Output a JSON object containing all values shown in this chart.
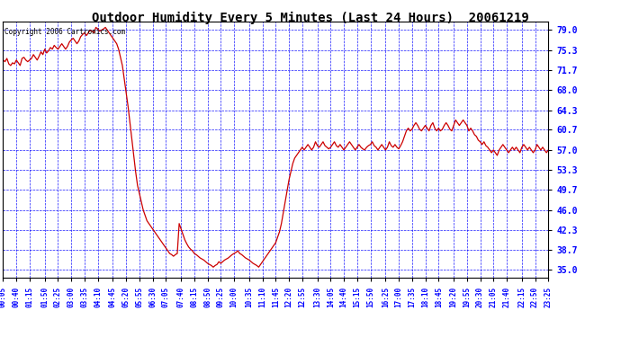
{
  "title": "Outdoor Humidity Every 5 Minutes (Last 24 Hours)  20061219",
  "copyright_text": "Copyright 2006 Cartronics.com",
  "background_color": "#ffffff",
  "plot_bg_color": "#ffffff",
  "grid_color": "#0000ff",
  "line_color": "#cc0000",
  "yticks": [
    35.0,
    38.7,
    42.3,
    46.0,
    49.7,
    53.3,
    57.0,
    60.7,
    64.3,
    68.0,
    71.7,
    75.3,
    79.0
  ],
  "ymin": 33.5,
  "ymax": 80.5,
  "xtick_labels": [
    "00:05",
    "00:40",
    "01:15",
    "01:50",
    "02:25",
    "03:00",
    "03:35",
    "04:10",
    "04:45",
    "05:20",
    "05:55",
    "06:30",
    "07:05",
    "07:40",
    "08:15",
    "08:50",
    "09:25",
    "10:00",
    "10:35",
    "11:10",
    "11:45",
    "12:20",
    "12:55",
    "13:30",
    "14:05",
    "14:40",
    "15:15",
    "15:50",
    "16:25",
    "17:00",
    "17:35",
    "18:10",
    "18:45",
    "19:20",
    "19:55",
    "20:30",
    "21:05",
    "21:40",
    "22:15",
    "22:50",
    "23:25"
  ],
  "humidity_data": [
    73.5,
    73.2,
    73.8,
    72.8,
    72.5,
    73.0,
    72.8,
    73.5,
    73.0,
    72.5,
    73.8,
    74.0,
    73.5,
    73.2,
    73.5,
    73.8,
    74.5,
    74.0,
    73.5,
    74.2,
    75.0,
    74.5,
    75.5,
    74.8,
    75.2,
    75.8,
    75.5,
    76.2,
    75.8,
    75.5,
    76.0,
    76.5,
    76.0,
    75.5,
    76.0,
    76.8,
    77.2,
    77.5,
    77.0,
    76.5,
    77.0,
    77.8,
    78.2,
    78.5,
    78.0,
    78.5,
    79.0,
    78.8,
    78.5,
    79.5,
    79.2,
    78.8,
    79.0,
    79.2,
    79.5,
    79.0,
    78.5,
    78.0,
    77.5,
    77.0,
    76.5,
    75.5,
    74.0,
    72.5,
    70.0,
    67.5,
    65.0,
    62.0,
    59.0,
    56.0,
    53.0,
    50.5,
    49.0,
    47.5,
    46.0,
    45.0,
    44.0,
    43.5,
    43.0,
    42.5,
    42.0,
    41.5,
    41.0,
    40.5,
    40.0,
    39.5,
    39.0,
    38.5,
    38.0,
    37.8,
    37.5,
    37.8,
    38.0,
    43.5,
    42.5,
    41.5,
    40.5,
    39.8,
    39.2,
    38.8,
    38.5,
    38.0,
    37.8,
    37.5,
    37.2,
    37.0,
    36.8,
    36.5,
    36.2,
    36.0,
    35.8,
    35.5,
    35.8,
    36.0,
    36.5,
    36.2,
    36.5,
    36.8,
    37.0,
    37.2,
    37.5,
    37.8,
    38.0,
    38.2,
    38.5,
    38.0,
    37.8,
    37.5,
    37.2,
    37.0,
    36.8,
    36.5,
    36.2,
    36.0,
    35.8,
    35.5,
    36.0,
    36.5,
    37.0,
    37.5,
    38.0,
    38.5,
    39.0,
    39.5,
    40.0,
    41.0,
    42.0,
    43.5,
    45.5,
    47.5,
    49.5,
    51.5,
    53.0,
    54.5,
    55.5,
    56.0,
    56.5,
    57.0,
    57.5,
    57.0,
    57.5,
    58.0,
    57.5,
    57.0,
    57.5,
    58.5,
    57.8,
    57.5,
    58.0,
    58.5,
    57.8,
    57.5,
    57.2,
    57.5,
    58.0,
    58.5,
    57.8,
    57.5,
    58.0,
    57.5,
    57.0,
    57.5,
    58.0,
    58.5,
    58.0,
    57.5,
    57.0,
    57.5,
    58.0,
    57.5,
    57.2,
    57.0,
    57.5,
    57.8,
    58.0,
    58.5,
    57.8,
    57.5,
    57.0,
    57.5,
    58.0,
    57.5,
    57.0,
    57.5,
    58.5,
    57.8,
    57.5,
    58.0,
    57.5,
    57.2,
    57.8,
    58.5,
    59.5,
    60.5,
    61.0,
    60.5,
    60.8,
    61.5,
    62.0,
    61.5,
    60.8,
    60.5,
    61.0,
    61.5,
    61.0,
    60.5,
    61.5,
    62.0,
    61.0,
    60.5,
    61.0,
    60.5,
    60.8,
    61.5,
    62.0,
    61.5,
    60.8,
    60.5,
    61.5,
    62.5,
    62.0,
    61.5,
    62.0,
    62.5,
    62.0,
    61.5,
    60.5,
    61.0,
    60.5,
    59.8,
    59.5,
    58.8,
    58.5,
    58.0,
    58.5,
    57.8,
    57.5,
    57.0,
    56.5,
    57.0,
    56.5,
    56.0,
    57.0,
    57.5,
    58.0,
    57.5,
    57.0,
    56.5,
    57.0,
    57.5,
    57.0,
    57.5,
    57.0,
    56.5,
    57.5,
    58.0,
    57.5,
    57.0,
    57.5,
    57.0,
    56.5,
    57.0,
    58.0,
    57.5,
    57.0,
    57.5,
    57.0,
    56.5,
    57.0
  ]
}
